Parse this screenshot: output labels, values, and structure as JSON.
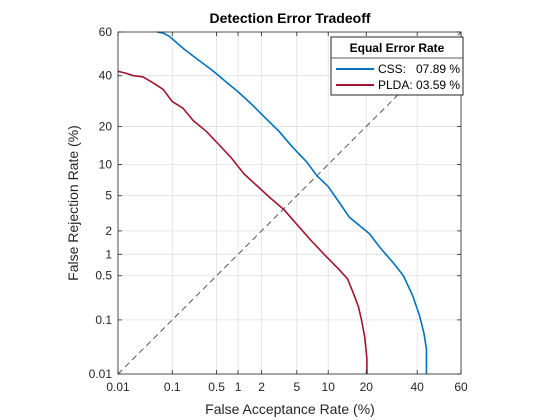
{
  "chart_data": {
    "type": "line",
    "title": "Detection Error Tradeoff",
    "xlabel": "False Acceptance Rate (%)",
    "ylabel": "False Rejection Rate (%)",
    "scale": "normal-deviate (probit)",
    "xlim": [
      0.01,
      60
    ],
    "ylim": [
      0.01,
      60
    ],
    "x_ticks": [
      0.01,
      0.1,
      0.5,
      1,
      2,
      5,
      10,
      20,
      40,
      60
    ],
    "x_tick_labels": [
      "0.01",
      "0.1",
      "0.5",
      "1",
      "2",
      "5",
      "10",
      "20",
      "40",
      "60"
    ],
    "y_ticks": [
      0.01,
      0.1,
      0.5,
      1,
      2,
      5,
      10,
      20,
      40,
      60
    ],
    "y_tick_labels": [
      "0.01",
      "0.1",
      "0.5",
      "1",
      "2",
      "5",
      "10",
      "20",
      "40",
      "60"
    ],
    "grid": true,
    "legend": {
      "title": "Equal Error Rate",
      "placement": "top-right",
      "entries": [
        {
          "label": "CSS:   07.89 %",
          "color": "#0072bd"
        },
        {
          "label": "PLDA: 03.59 %",
          "color": "#a2142f"
        }
      ]
    },
    "reference_line": {
      "style": "dashed",
      "color": "#555555",
      "from": [
        0.01,
        0.01
      ],
      "to": [
        60,
        60
      ]
    },
    "series": [
      {
        "name": "CSS",
        "color": "#0072bd",
        "x": [
          0.055,
          0.07,
          0.09,
          0.12,
          0.16,
          0.22,
          0.3,
          0.45,
          0.7,
          1.0,
          1.5,
          2.2,
          3.2,
          4.5,
          6.3,
          7.89,
          10,
          12.5,
          15,
          18,
          21,
          25,
          30,
          34,
          38,
          41,
          43,
          44.2,
          44.2
        ],
        "y": [
          60,
          59.5,
          58,
          55,
          52,
          49,
          46,
          42,
          37,
          33,
          28,
          23,
          18.5,
          14,
          10.5,
          7.89,
          6.2,
          4.2,
          2.9,
          2.3,
          1.85,
          1.2,
          0.75,
          0.5,
          0.25,
          0.12,
          0.06,
          0.03,
          0.01
        ]
      },
      {
        "name": "PLDA",
        "color": "#a2142f",
        "x": [
          0.01,
          0.015,
          0.02,
          0.03,
          0.045,
          0.07,
          0.1,
          0.15,
          0.22,
          0.35,
          0.55,
          0.8,
          1.2,
          1.8,
          2.5,
          3.59,
          5,
          7,
          9.5,
          12,
          14.5,
          16,
          17.5,
          18.5,
          19.5,
          20.2,
          20.2
        ],
        "y": [
          42,
          41,
          40,
          39.5,
          37,
          34,
          29,
          26.5,
          22,
          18.5,
          14.5,
          11.5,
          8.2,
          6.2,
          4.8,
          3.59,
          2.4,
          1.5,
          0.95,
          0.65,
          0.45,
          0.28,
          0.17,
          0.1,
          0.05,
          0.02,
          0.01
        ]
      }
    ]
  }
}
